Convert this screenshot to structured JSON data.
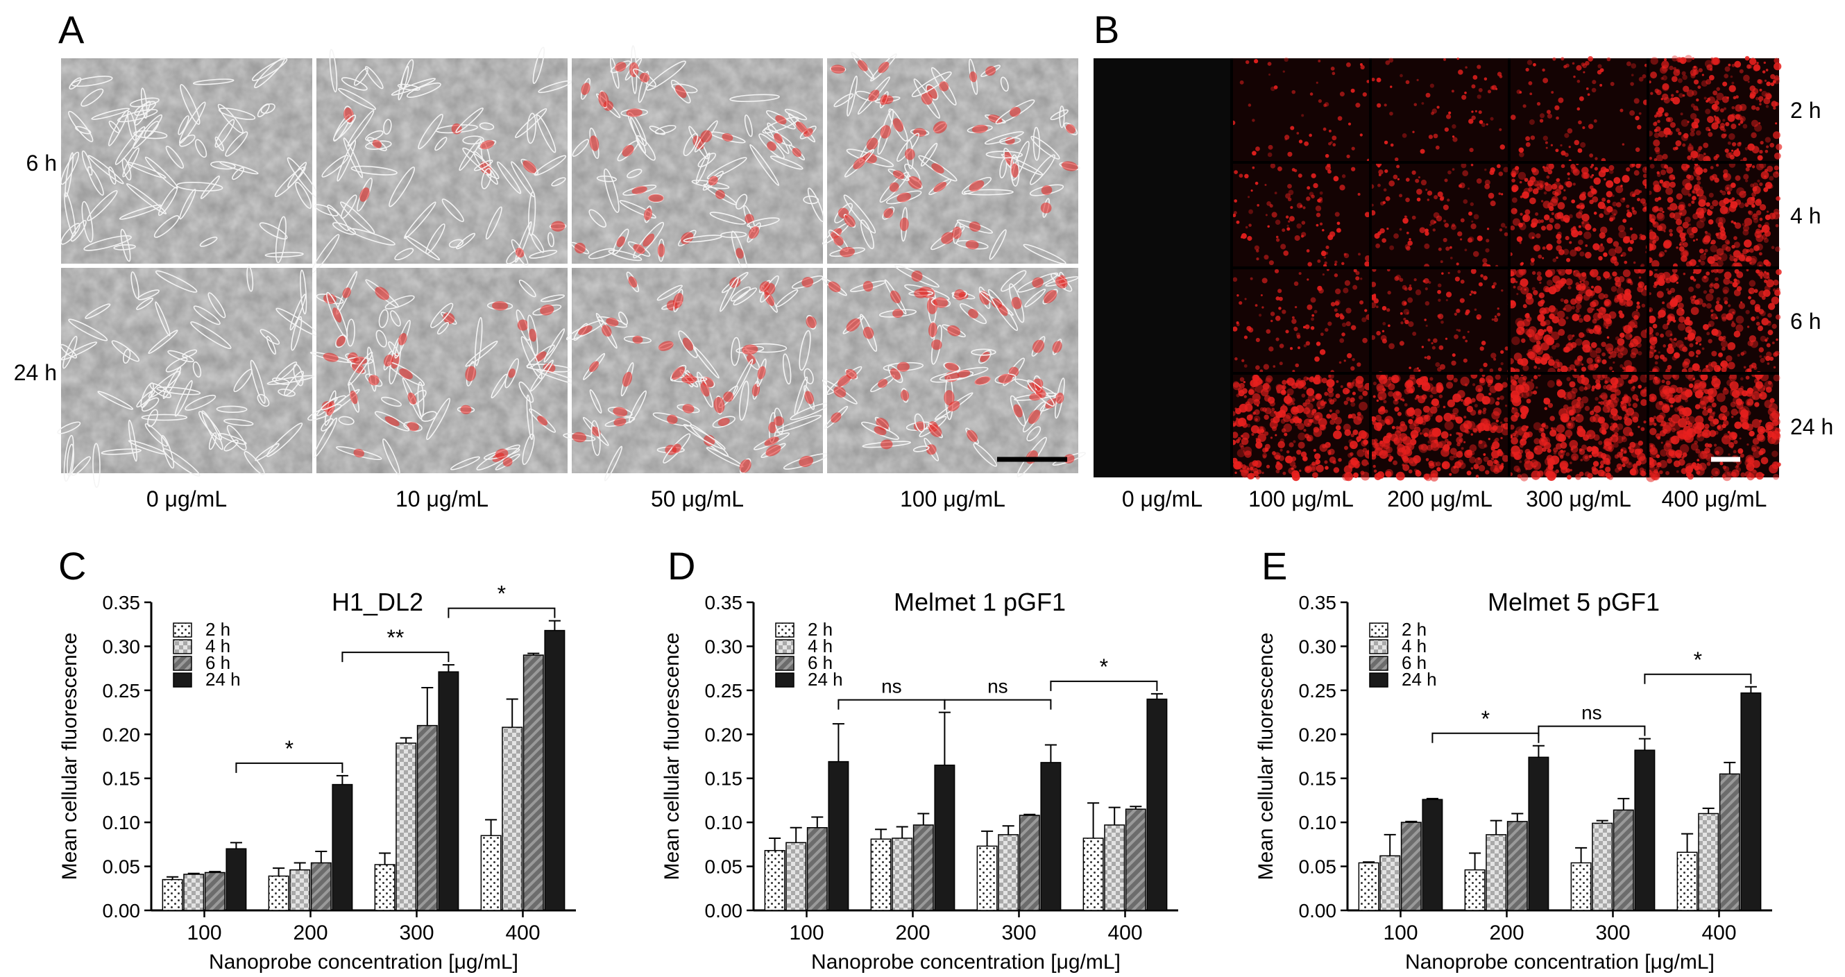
{
  "panel_a": {
    "label": "A",
    "rows": [
      "6 h",
      "24 h"
    ],
    "cols": [
      "0 μg/mL",
      "10 μg/mL",
      "50 μg/mL",
      "100 μg/mL"
    ],
    "red_intensity": [
      [
        0,
        0.12,
        0.32,
        0.42
      ],
      [
        0,
        0.28,
        0.45,
        0.55
      ]
    ]
  },
  "panel_b": {
    "label": "B",
    "rows": [
      "2 h",
      "4 h",
      "6 h",
      "24 h"
    ],
    "cols": [
      "0 μg/mL",
      "100 μg/mL",
      "200 μg/mL",
      "300 μg/mL",
      "400 μg/mL"
    ],
    "red_density": [
      [
        0,
        0.06,
        0.08,
        0.14,
        0.55
      ],
      [
        0,
        0.18,
        0.22,
        0.55,
        0.65
      ],
      [
        0,
        0.18,
        0.22,
        0.7,
        0.6
      ],
      [
        0,
        0.75,
        0.8,
        0.85,
        0.85
      ]
    ]
  },
  "colors": {
    "bar_24h": "#1a1a1a",
    "red_signal": "#e8201e",
    "micro_background": "#c9c9c9"
  },
  "chart_data": [
    {
      "type": "bar",
      "panel_label": "C",
      "title": "H1_DL2",
      "xlabel": "Nanoprobe concentration [μg/mL]",
      "ylabel": "Mean cellular fluorescence",
      "categories": [
        "100",
        "200",
        "300",
        "400"
      ],
      "ylim": [
        0,
        0.35
      ],
      "yticks": [
        "0.00",
        "0.05",
        "0.10",
        "0.15",
        "0.20",
        "0.25",
        "0.30",
        "0.35"
      ],
      "legend": [
        "2 h",
        "4 h",
        "6 h",
        "24 h"
      ],
      "legend_position": "top-left",
      "series": [
        {
          "name": "2 h",
          "values": [
            0.035,
            0.039,
            0.052,
            0.085
          ],
          "errors": [
            0.003,
            0.009,
            0.013,
            0.018
          ]
        },
        {
          "name": "4 h",
          "values": [
            0.041,
            0.046,
            0.19,
            0.208
          ],
          "errors": [
            0.001,
            0.008,
            0.006,
            0.032
          ]
        },
        {
          "name": "6 h",
          "values": [
            0.043,
            0.054,
            0.21,
            0.29
          ],
          "errors": [
            0.001,
            0.013,
            0.043,
            0.002
          ]
        },
        {
          "name": "24 h",
          "values": [
            0.07,
            0.143,
            0.271,
            0.318
          ],
          "errors": [
            0.007,
            0.01,
            0.008,
            0.011
          ]
        }
      ],
      "annotations": [
        {
          "text": "*",
          "from": "100",
          "to": "200"
        },
        {
          "text": "**",
          "from": "200",
          "to": "300"
        },
        {
          "text": "*",
          "from": "300",
          "to": "400"
        }
      ]
    },
    {
      "type": "bar",
      "panel_label": "D",
      "title": "Melmet 1 pGF1",
      "xlabel": "Nanoprobe concentration [μg/mL]",
      "ylabel": "Mean cellular fluorescence",
      "categories": [
        "100",
        "200",
        "300",
        "400"
      ],
      "ylim": [
        0,
        0.35
      ],
      "yticks": [
        "0.00",
        "0.05",
        "0.10",
        "0.15",
        "0.20",
        "0.25",
        "0.30",
        "0.35"
      ],
      "legend": [
        "2 h",
        "4 h",
        "6 h",
        "24 h"
      ],
      "legend_position": "top-left",
      "series": [
        {
          "name": "2 h",
          "values": [
            0.068,
            0.081,
            0.073,
            0.082
          ],
          "errors": [
            0.014,
            0.011,
            0.017,
            0.04
          ]
        },
        {
          "name": "4 h",
          "values": [
            0.077,
            0.082,
            0.086,
            0.097
          ],
          "errors": [
            0.017,
            0.013,
            0.01,
            0.02
          ]
        },
        {
          "name": "6 h",
          "values": [
            0.094,
            0.097,
            0.108,
            0.115
          ],
          "errors": [
            0.012,
            0.013,
            0.001,
            0.003
          ]
        },
        {
          "name": "24 h",
          "values": [
            0.169,
            0.165,
            0.168,
            0.24
          ],
          "errors": [
            0.043,
            0.06,
            0.02,
            0.006
          ]
        }
      ],
      "annotations": [
        {
          "text": "ns",
          "from": "100",
          "to": "200"
        },
        {
          "text": "ns",
          "from": "200",
          "to": "300"
        },
        {
          "text": "*",
          "from": "300",
          "to": "400"
        }
      ]
    },
    {
      "type": "bar",
      "panel_label": "E",
      "title": "Melmet 5 pGF1",
      "xlabel": "Nanoprobe concentration [μg/mL]",
      "ylabel": "Mean cellular fluorescence",
      "categories": [
        "100",
        "200",
        "300",
        "400"
      ],
      "ylim": [
        0,
        0.35
      ],
      "yticks": [
        "0.00",
        "0.05",
        "0.10",
        "0.15",
        "0.20",
        "0.25",
        "0.30",
        "0.35"
      ],
      "legend": [
        "2 h",
        "4 h",
        "6 h",
        "24 h"
      ],
      "legend_position": "top-left",
      "series": [
        {
          "name": "2 h",
          "values": [
            0.054,
            0.046,
            0.054,
            0.066
          ],
          "errors": [
            0.001,
            0.019,
            0.017,
            0.021
          ]
        },
        {
          "name": "4 h",
          "values": [
            0.062,
            0.086,
            0.099,
            0.11
          ],
          "errors": [
            0.024,
            0.016,
            0.003,
            0.006
          ]
        },
        {
          "name": "6 h",
          "values": [
            0.1,
            0.101,
            0.114,
            0.155
          ],
          "errors": [
            0.001,
            0.009,
            0.013,
            0.013
          ]
        },
        {
          "name": "24 h",
          "values": [
            0.126,
            0.174,
            0.182,
            0.247
          ],
          "errors": [
            0.001,
            0.013,
            0.013,
            0.007
          ]
        }
      ],
      "annotations": [
        {
          "text": "*",
          "from": "100",
          "to": "200"
        },
        {
          "text": "ns",
          "from": "200",
          "to": "300"
        },
        {
          "text": "*",
          "from": "300",
          "to": "400"
        }
      ]
    }
  ]
}
